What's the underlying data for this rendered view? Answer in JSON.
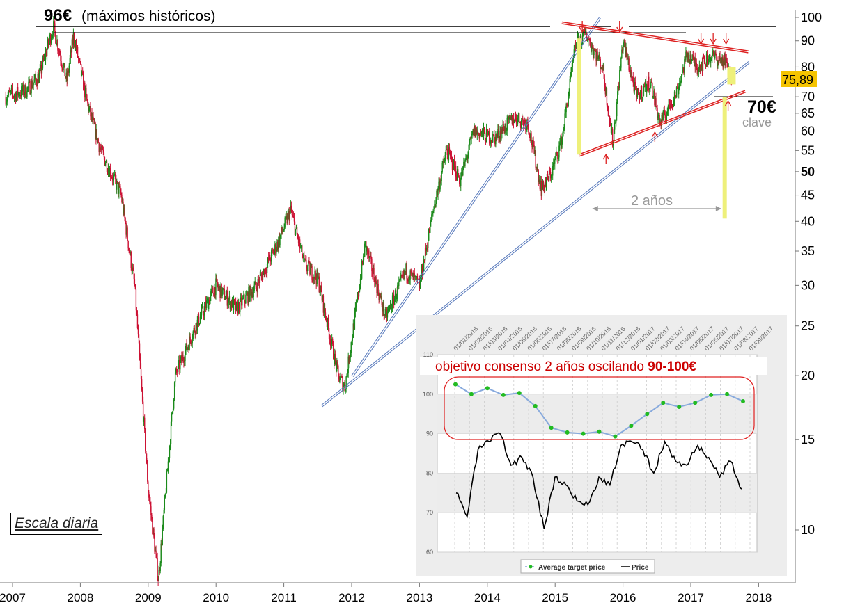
{
  "annotations": {
    "ath_value": "96€",
    "ath_label": "(máximos históricos)",
    "key_value": "70€",
    "key_label": "clave",
    "duration": "2 años",
    "scale_label": "Escala diaria",
    "last_price": "75,89",
    "inset_title_prefix": "objetivo consenso 2 años oscilando ",
    "inset_title_bold": "90-100€"
  },
  "colors": {
    "up": "#1a8a1a",
    "down": "#cc1133",
    "channel": "#5577bb",
    "trend_red": "#dd2222",
    "highlight": "#eef07a",
    "price_badge": "#f5c400",
    "inset_target": "#88aadd",
    "inset_dot": "#22bb22"
  },
  "chart_data": [
    {
      "type": "candlestick",
      "title": "",
      "scale": "log",
      "x_ticks": [
        "2007",
        "2008",
        "2009",
        "2010",
        "2011",
        "2012",
        "2013",
        "2014",
        "2015",
        "2016",
        "2017",
        "2018"
      ],
      "y_ticks": [
        "10",
        "15",
        "20",
        "25",
        "30",
        "35",
        "40",
        "45",
        "50",
        "55",
        "60",
        "65",
        "70",
        "80",
        "90",
        "100"
      ],
      "ylim": [
        8,
        100
      ],
      "last_price": 75.89,
      "price_path": [
        {
          "x": 2006.9,
          "y": 70
        },
        {
          "x": 2007.2,
          "y": 72
        },
        {
          "x": 2007.4,
          "y": 77
        },
        {
          "x": 2007.6,
          "y": 96
        },
        {
          "x": 2007.8,
          "y": 75
        },
        {
          "x": 2007.9,
          "y": 92
        },
        {
          "x": 2008.1,
          "y": 68
        },
        {
          "x": 2008.3,
          "y": 55
        },
        {
          "x": 2008.6,
          "y": 45
        },
        {
          "x": 2008.8,
          "y": 30
        },
        {
          "x": 2009.0,
          "y": 12
        },
        {
          "x": 2009.15,
          "y": 8
        },
        {
          "x": 2009.4,
          "y": 20
        },
        {
          "x": 2009.7,
          "y": 25
        },
        {
          "x": 2010.0,
          "y": 30
        },
        {
          "x": 2010.3,
          "y": 27
        },
        {
          "x": 2010.6,
          "y": 30
        },
        {
          "x": 2010.9,
          "y": 36
        },
        {
          "x": 2011.1,
          "y": 42
        },
        {
          "x": 2011.3,
          "y": 33
        },
        {
          "x": 2011.5,
          "y": 31
        },
        {
          "x": 2011.8,
          "y": 20
        },
        {
          "x": 2011.9,
          "y": 19
        },
        {
          "x": 2012.2,
          "y": 36
        },
        {
          "x": 2012.5,
          "y": 26
        },
        {
          "x": 2012.8,
          "y": 32
        },
        {
          "x": 2013.0,
          "y": 30
        },
        {
          "x": 2013.2,
          "y": 42
        },
        {
          "x": 2013.4,
          "y": 55
        },
        {
          "x": 2013.6,
          "y": 48
        },
        {
          "x": 2013.8,
          "y": 60
        },
        {
          "x": 2014.1,
          "y": 58
        },
        {
          "x": 2014.4,
          "y": 64
        },
        {
          "x": 2014.6,
          "y": 62
        },
        {
          "x": 2014.8,
          "y": 46
        },
        {
          "x": 2014.95,
          "y": 50
        },
        {
          "x": 2015.1,
          "y": 58
        },
        {
          "x": 2015.3,
          "y": 88
        },
        {
          "x": 2015.45,
          "y": 93
        },
        {
          "x": 2015.7,
          "y": 80
        },
        {
          "x": 2015.85,
          "y": 57
        },
        {
          "x": 2016.0,
          "y": 90
        },
        {
          "x": 2016.2,
          "y": 70
        },
        {
          "x": 2016.4,
          "y": 75
        },
        {
          "x": 2016.55,
          "y": 62
        },
        {
          "x": 2016.8,
          "y": 72
        },
        {
          "x": 2016.95,
          "y": 85
        },
        {
          "x": 2017.1,
          "y": 80
        },
        {
          "x": 2017.3,
          "y": 84
        },
        {
          "x": 2017.5,
          "y": 82
        },
        {
          "x": 2017.6,
          "y": 75.89
        }
      ],
      "channels": [
        {
          "name": "blue upper",
          "from": {
            "x": 2012.0,
            "y": 20
          },
          "to": {
            "x": 2015.65,
            "y": 100
          }
        },
        {
          "name": "blue lower",
          "from": {
            "x": 2011.55,
            "y": 17.5
          },
          "to": {
            "x": 2017.85,
            "y": 82
          }
        },
        {
          "name": "red resistance",
          "from": {
            "x": 2015.1,
            "y": 98
          },
          "to": {
            "x": 2017.85,
            "y": 86
          }
        },
        {
          "name": "red support",
          "from": {
            "x": 2015.35,
            "y": 54
          },
          "to": {
            "x": 2017.8,
            "y": 72
          }
        }
      ]
    },
    {
      "type": "line",
      "title": "objetivo consenso 2 años oscilando 90-100€",
      "x_ticks": [
        "01/01/2016",
        "01/02/2016",
        "01/03/2016",
        "01/04/2016",
        "01/05/2016",
        "01/06/2016",
        "01/07/2016",
        "01/08/2016",
        "01/09/2016",
        "01/10/2016",
        "01/11/2016",
        "01/12/2016",
        "01/01/2017",
        "01/02/2017",
        "01/03/2017",
        "01/04/2017",
        "01/05/2017",
        "01/06/2017",
        "01/07/2017",
        "01/08/2017",
        "01/09/2017"
      ],
      "y_ticks": [
        "60",
        "70",
        "80",
        "90",
        "100",
        "110"
      ],
      "ylim": [
        60,
        110
      ],
      "series": [
        {
          "name": "Average target price",
          "values": [
            102.5,
            100,
            101.5,
            99.8,
            100.3,
            97,
            91.5,
            90.3,
            90,
            90.5,
            89.3,
            92,
            95,
            97.8,
            96.8,
            97.8,
            99.8,
            100,
            98.2
          ]
        },
        {
          "name": "Price",
          "values": [
            75,
            69,
            86,
            88,
            90,
            82,
            84,
            79,
            66,
            79,
            77,
            73,
            72,
            79,
            77,
            87,
            88,
            86,
            80,
            88,
            83,
            82,
            87,
            84,
            79,
            83,
            76
          ]
        }
      ],
      "legend_position": "bottom"
    }
  ]
}
